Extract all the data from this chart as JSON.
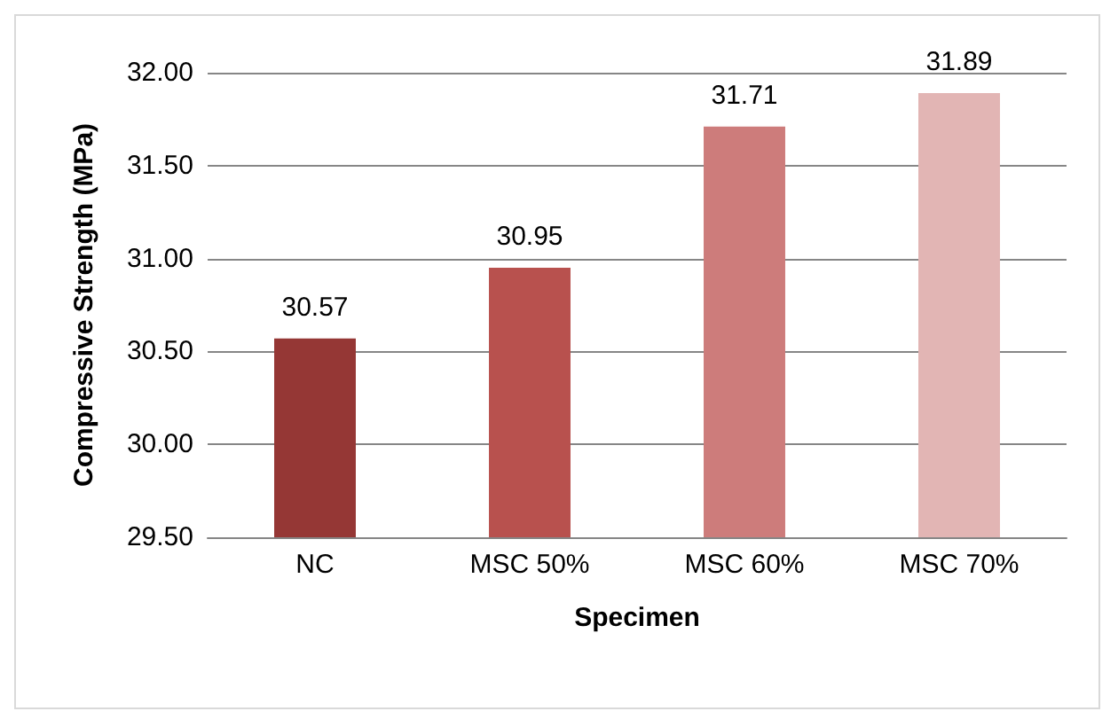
{
  "chart_data": {
    "type": "bar",
    "xlabel": "Specimen",
    "ylabel": "Compressive Strength (MPa)",
    "categories": [
      "NC",
      "MSC 50%",
      "MSC 60%",
      "MSC 70%"
    ],
    "values": [
      30.57,
      30.95,
      31.71,
      31.89
    ],
    "colors": [
      "#953735",
      "#b8514e",
      "#cd7c7b",
      "#e2b5b4"
    ],
    "ylim": [
      29.5,
      32
    ],
    "yticks": [
      {
        "value": 29.5,
        "label": "29.50"
      },
      {
        "value": 30,
        "label": "30.00"
      },
      {
        "value": 30.5,
        "label": "30.50"
      },
      {
        "value": 31,
        "label": "31.00"
      },
      {
        "value": 31.5,
        "label": "31.50"
      },
      {
        "value": 32,
        "label": "32.00"
      }
    ],
    "grid": "y",
    "data_labels": true
  }
}
